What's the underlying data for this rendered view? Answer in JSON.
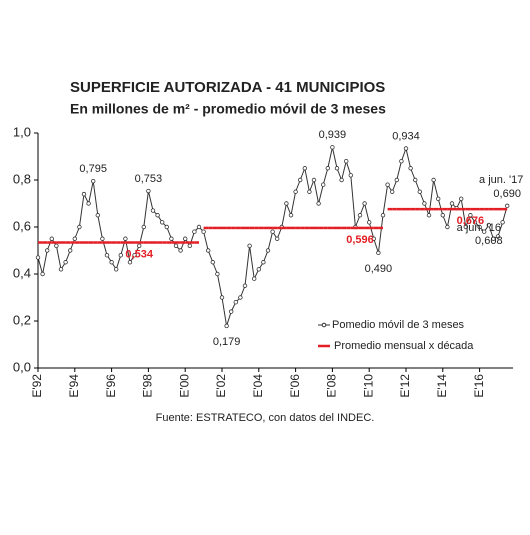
{
  "chart_data": {
    "type": "line",
    "title": "SUPERFICIE AUTORIZADA  - 41 MUNICIPIOS",
    "subtitle": "En millones de m² - promedio móvil de 3 meses",
    "source": "Fuente: ESTRATECO, con datos del INDEC.",
    "categories": [
      "E'92",
      null,
      null,
      null,
      null,
      null,
      null,
      null,
      "E'94",
      null,
      null,
      null,
      null,
      null,
      null,
      null,
      "E'96",
      null,
      null,
      null,
      null,
      null,
      null,
      null,
      "E'98",
      null,
      null,
      null,
      null,
      null,
      null,
      null,
      "E'00",
      null,
      null,
      null,
      null,
      null,
      null,
      null,
      "E'02",
      null,
      null,
      null,
      null,
      null,
      null,
      null,
      "E'04",
      null,
      null,
      null,
      null,
      null,
      null,
      null,
      "E'06",
      null,
      null,
      null,
      null,
      null,
      null,
      null,
      "E'08",
      null,
      null,
      null,
      null,
      null,
      null,
      null,
      "E'10",
      null,
      null,
      null,
      null,
      null,
      null,
      null,
      "E'12",
      null,
      null,
      null,
      null,
      null,
      null,
      null,
      "E'14",
      null,
      null,
      null,
      null,
      null,
      null,
      null,
      "E'16",
      null,
      null,
      null,
      null,
      null,
      null
    ],
    "series": [
      {
        "name": "Pomedio móvil de 3 meses",
        "color": "#333333",
        "values": [
          0.47,
          0.4,
          0.5,
          0.55,
          0.52,
          0.42,
          0.45,
          0.5,
          0.55,
          0.6,
          0.74,
          0.7,
          0.795,
          0.65,
          0.55,
          0.48,
          0.45,
          0.42,
          0.48,
          0.55,
          0.45,
          0.48,
          0.52,
          0.6,
          0.753,
          0.67,
          0.65,
          0.62,
          0.6,
          0.55,
          0.52,
          0.5,
          0.55,
          0.52,
          0.58,
          0.6,
          0.58,
          0.5,
          0.45,
          0.4,
          0.3,
          0.179,
          0.24,
          0.28,
          0.3,
          0.35,
          0.52,
          0.38,
          0.42,
          0.45,
          0.5,
          0.58,
          0.55,
          0.6,
          0.7,
          0.65,
          0.75,
          0.8,
          0.85,
          0.75,
          0.8,
          0.7,
          0.78,
          0.85,
          0.939,
          0.85,
          0.8,
          0.88,
          0.82,
          0.6,
          0.65,
          0.7,
          0.62,
          0.55,
          0.49,
          0.65,
          0.78,
          0.75,
          0.8,
          0.88,
          0.934,
          0.85,
          0.8,
          0.75,
          0.7,
          0.65,
          0.8,
          0.72,
          0.65,
          0.6,
          0.7,
          0.68,
          0.72,
          0.6,
          0.65,
          0.62,
          0.6,
          0.58,
          0.608,
          0.55,
          0.56,
          0.62,
          0.69
        ],
        "value_labels": [
          null,
          null,
          null,
          null,
          null,
          null,
          null,
          null,
          null,
          null,
          null,
          null,
          "0,795",
          null,
          null,
          null,
          null,
          null,
          null,
          null,
          null,
          null,
          null,
          null,
          "0,753",
          null,
          null,
          null,
          null,
          null,
          null,
          null,
          null,
          null,
          null,
          null,
          null,
          null,
          null,
          null,
          null,
          "0,179",
          null,
          null,
          null,
          null,
          null,
          null,
          null,
          null,
          null,
          null,
          null,
          null,
          null,
          null,
          null,
          null,
          null,
          null,
          null,
          null,
          null,
          null,
          "0,939",
          null,
          null,
          null,
          null,
          null,
          null,
          null,
          null,
          null,
          "0,490",
          null,
          null,
          null,
          null,
          null,
          "0,934",
          null,
          null,
          null,
          null,
          null,
          null,
          null,
          null,
          null,
          null,
          null,
          null,
          null,
          null,
          null,
          null,
          null,
          "0,608",
          null,
          null,
          null,
          "0,690"
        ]
      },
      {
        "name": "Promedio mensual x década",
        "color": "#e31e24",
        "values": [
          0.534,
          0.534,
          0.534,
          0.534,
          0.534,
          0.534,
          0.534,
          0.534,
          0.534,
          0.534,
          0.534,
          0.534,
          0.534,
          0.534,
          0.534,
          0.534,
          0.534,
          0.534,
          0.534,
          0.534,
          0.534,
          0.534,
          0.534,
          0.534,
          0.534,
          0.534,
          0.534,
          0.534,
          0.534,
          0.534,
          0.534,
          0.534,
          0.534,
          0.534,
          0.534,
          0.534,
          0.596,
          0.596,
          0.596,
          0.596,
          0.596,
          0.596,
          0.596,
          0.596,
          0.596,
          0.596,
          0.596,
          0.596,
          0.596,
          0.596,
          0.596,
          0.596,
          0.596,
          0.596,
          0.596,
          0.596,
          0.596,
          0.596,
          0.596,
          0.596,
          0.596,
          0.596,
          0.596,
          0.596,
          0.596,
          0.596,
          0.596,
          0.596,
          0.596,
          0.596,
          0.596,
          0.596,
          0.596,
          0.596,
          0.596,
          0.596,
          0.676,
          0.676,
          0.676,
          0.676,
          0.676,
          0.676,
          0.676,
          0.676,
          0.676,
          0.676,
          0.676,
          0.676,
          0.676,
          0.676,
          0.676,
          0.676,
          0.676,
          0.676,
          0.676,
          0.676,
          0.676,
          0.676,
          0.676,
          0.676,
          0.676,
          0.676,
          0.676
        ],
        "value_labels": [
          null,
          null,
          null,
          null,
          null,
          null,
          null,
          null,
          null,
          null,
          null,
          null,
          null,
          null,
          null,
          null,
          null,
          null,
          null,
          null,
          null,
          null,
          "0,534",
          null,
          null,
          null,
          null,
          null,
          null,
          null,
          null,
          null,
          null,
          null,
          null,
          null,
          null,
          null,
          null,
          null,
          null,
          null,
          null,
          null,
          null,
          null,
          null,
          null,
          null,
          null,
          null,
          null,
          null,
          null,
          null,
          null,
          null,
          null,
          null,
          null,
          null,
          null,
          null,
          null,
          null,
          null,
          null,
          null,
          null,
          null,
          "0,596",
          null,
          null,
          null,
          null,
          null,
          null,
          null,
          null,
          null,
          null,
          null,
          null,
          null,
          null,
          null,
          null,
          null,
          null,
          null,
          null,
          null,
          null,
          null,
          "0,676",
          null,
          null,
          null,
          null,
          null,
          null,
          null,
          null
        ]
      }
    ],
    "annotations": [
      "a jun. '16",
      "a jun. '17"
    ],
    "ylim": [
      0,
      1
    ],
    "yticks": [
      {
        "value": 0,
        "label": "0,0"
      },
      {
        "value": 0.2,
        "label": "0,2"
      },
      {
        "value": 0.4,
        "label": "0,4"
      },
      {
        "value": 0.6,
        "label": "0,6"
      },
      {
        "value": 0.8,
        "label": "0,8"
      },
      {
        "value": 1,
        "label": "1,0"
      }
    ],
    "grid": false,
    "legend": "lower right"
  }
}
